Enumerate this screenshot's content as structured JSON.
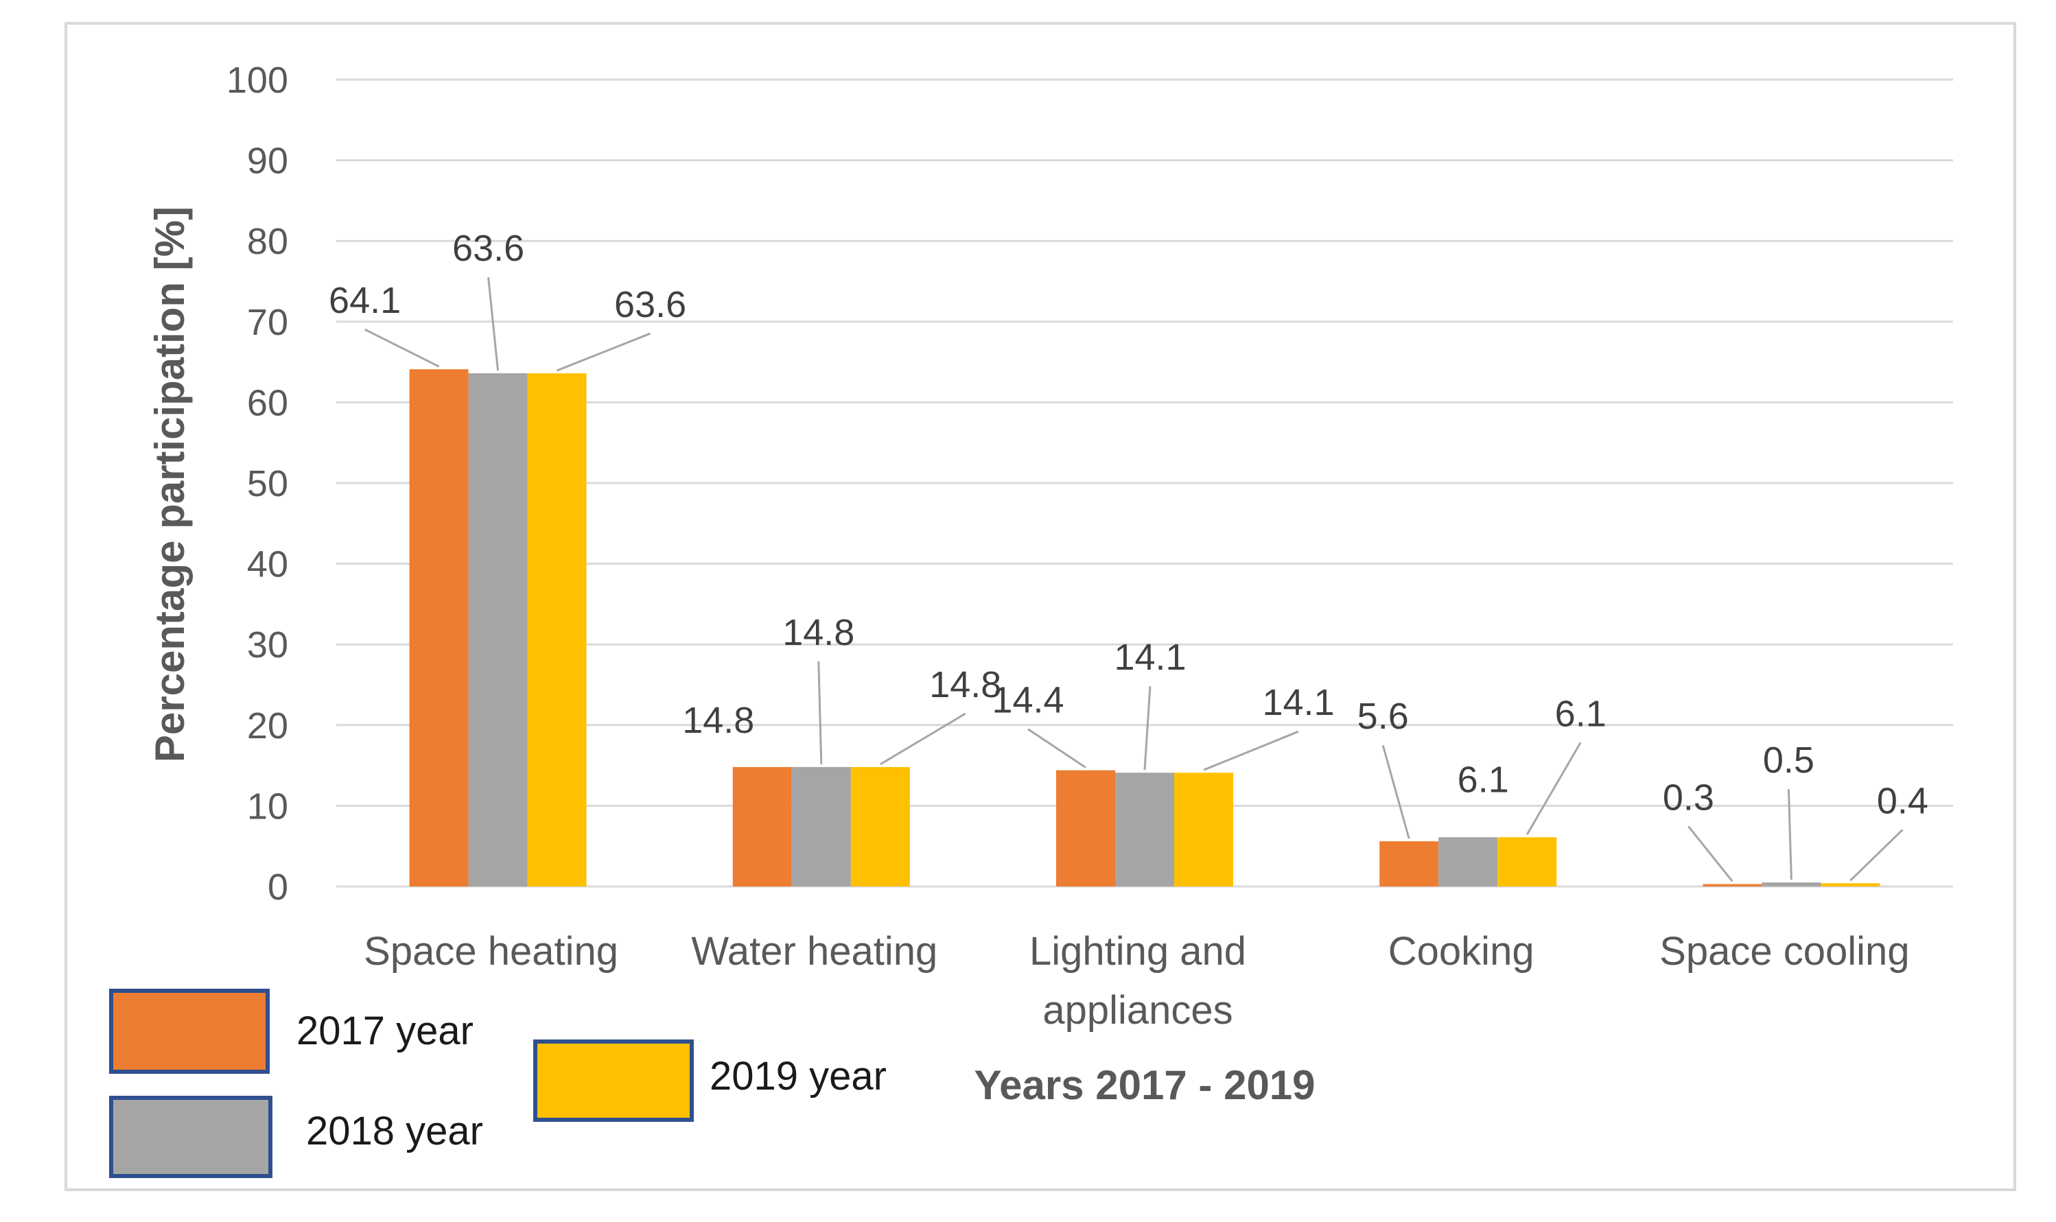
{
  "chart_data": {
    "type": "bar",
    "title": "",
    "xlabel": "Years 2017 - 2019",
    "ylabel": "Percentage participation [%]",
    "ylim": [
      0,
      100
    ],
    "yticks": [
      "0",
      "10",
      "20",
      "30",
      "40",
      "50",
      "60",
      "70",
      "80",
      "90",
      "100"
    ],
    "grid": true,
    "legend_position": "bottom-left",
    "categories": [
      [
        "Space heating"
      ],
      [
        "Water heating"
      ],
      [
        "Lighting and",
        "appliances"
      ],
      [
        "Cooking"
      ],
      [
        "Space cooling"
      ]
    ],
    "series": [
      {
        "name": "2017 year",
        "color": "#ED7D31",
        "values": [
          64.1,
          14.8,
          14.4,
          5.6,
          0.3
        ],
        "labels": [
          "64.1",
          "14.8",
          "14.4",
          "5.6",
          "0.3"
        ]
      },
      {
        "name": "2018 year",
        "color": "#A5A5A5",
        "values": [
          63.6,
          14.8,
          14.1,
          6.1,
          0.5
        ],
        "labels": [
          "63.6",
          "14.8",
          "14.1",
          "6.1",
          "0.5"
        ]
      },
      {
        "name": "2019 year",
        "color": "#FFC000",
        "values": [
          63.6,
          14.8,
          14.1,
          6.1,
          0.4
        ],
        "labels": [
          "63.6",
          "14.8",
          "14.1",
          "6.1",
          "0.4"
        ]
      }
    ]
  }
}
